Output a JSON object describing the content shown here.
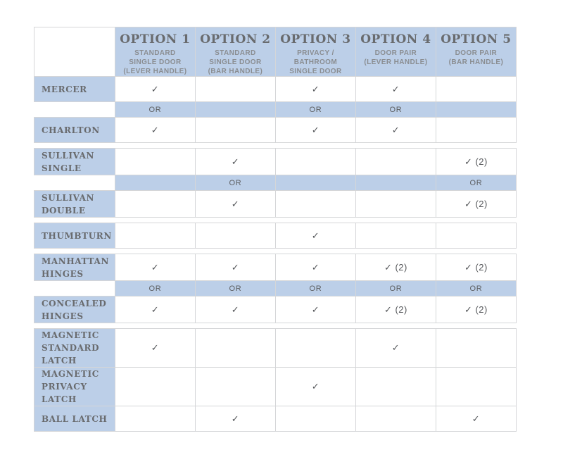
{
  "colors": {
    "panel_blue": "#bccfe8",
    "grid_line": "#d5d6d8",
    "title_text": "#696b6e",
    "subtitle_text": "#8a8d91",
    "check_text": "#55575a",
    "or_text": "#5c5e61",
    "background": "#ffffff"
  },
  "matrix": {
    "corner_label": "",
    "columns": [
      {
        "title": "OPTION 1",
        "subtitle": "STANDARD\nSINGLE DOOR\n(LEVER HANDLE)"
      },
      {
        "title": "OPTION 2",
        "subtitle": "STANDARD\nSINGLE DOOR\n(BAR HANDLE)"
      },
      {
        "title": "OPTION 3",
        "subtitle": "PRIVACY /\nBATHROOM\nSINGLE DOOR"
      },
      {
        "title": "OPTION 4",
        "subtitle": "DOOR PAIR\n(LEVER HANDLE)"
      },
      {
        "title": "OPTION 5",
        "subtitle": "DOOR PAIR\n(BAR HANDLE)"
      }
    ],
    "sections": [
      {
        "rows": [
          {
            "type": "item",
            "label": "MERCER",
            "cells": [
              "✓",
              "",
              "✓",
              "✓",
              ""
            ]
          },
          {
            "type": "or",
            "label": "",
            "cells": [
              "OR",
              "",
              "OR",
              "OR",
              ""
            ]
          },
          {
            "type": "item",
            "label": "CHARLTON",
            "cells": [
              "✓",
              "",
              "✓",
              "✓",
              ""
            ]
          }
        ]
      },
      {
        "rows": [
          {
            "type": "item",
            "label": "SULLIVAN\nSINGLE",
            "cells": [
              "",
              "✓",
              "",
              "",
              "✓ (2)"
            ]
          },
          {
            "type": "or",
            "label": "",
            "cells": [
              "",
              "OR",
              "",
              "",
              "OR"
            ]
          },
          {
            "type": "item",
            "label": "SULLIVAN\nDOUBLE",
            "cells": [
              "",
              "✓",
              "",
              "",
              "✓ (2)"
            ]
          }
        ]
      },
      {
        "rows": [
          {
            "type": "item",
            "label": "THUMBTURN",
            "cells": [
              "",
              "",
              "✓",
              "",
              ""
            ]
          }
        ]
      },
      {
        "rows": [
          {
            "type": "item",
            "label": "MANHATTAN\nHINGES",
            "cells": [
              "✓",
              "✓",
              "✓",
              "✓ (2)",
              "✓ (2)"
            ]
          },
          {
            "type": "or",
            "label": "",
            "cells": [
              "OR",
              "OR",
              "OR",
              "OR",
              "OR"
            ]
          },
          {
            "type": "item",
            "label": "CONCEALED\nHINGES",
            "cells": [
              "✓",
              "✓",
              "✓",
              "✓ (2)",
              "✓ (2)"
            ]
          }
        ]
      },
      {
        "rows": [
          {
            "type": "item",
            "label": "MAGNETIC\nSTANDARD\nLATCH",
            "cells": [
              "✓",
              "",
              "",
              "✓",
              ""
            ]
          },
          {
            "type": "item",
            "label": "MAGNETIC\nPRIVACY\nLATCH",
            "cells": [
              "",
              "",
              "✓",
              "",
              ""
            ]
          },
          {
            "type": "item",
            "label": "BALL LATCH",
            "cells": [
              "",
              "✓",
              "",
              "",
              "✓"
            ]
          }
        ]
      }
    ]
  }
}
